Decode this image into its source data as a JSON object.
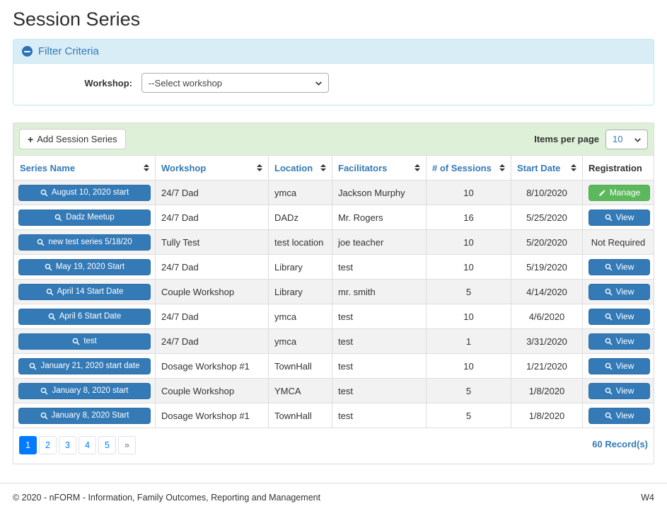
{
  "page": {
    "title": "Session Series"
  },
  "filter": {
    "title": "Filter Criteria",
    "workshop_label": "Workshop:",
    "workshop_selected": "--Select workshop"
  },
  "toolbar": {
    "add_icon_glyph": "+",
    "add_button_label": "Add Session Series",
    "items_per_page_label": "Items per page",
    "items_per_page_value": "10"
  },
  "table": {
    "columns": [
      {
        "label": "Series Name",
        "sortable": true
      },
      {
        "label": "Workshop",
        "sortable": true
      },
      {
        "label": "Location",
        "sortable": true
      },
      {
        "label": "Facilitators",
        "sortable": true
      },
      {
        "label": "# of Sessions",
        "sortable": true
      },
      {
        "label": "Start Date",
        "sortable": true
      },
      {
        "label": "Registration",
        "sortable": false
      }
    ],
    "rows": [
      {
        "series_name": "August 10, 2020 start",
        "workshop": "24/7 Dad",
        "location": "ymca",
        "facilitators": "Jackson Murphy",
        "sessions": "10",
        "start_date": "8/10/2020",
        "registration": {
          "type": "manage",
          "label": "Manage"
        }
      },
      {
        "series_name": "Dadz Meetup",
        "workshop": "24/7 Dad",
        "location": "DADz",
        "facilitators": "Mr. Rogers",
        "sessions": "16",
        "start_date": "5/25/2020",
        "registration": {
          "type": "view",
          "label": "View"
        }
      },
      {
        "series_name": "new test series 5/18/20",
        "workshop": "Tully Test",
        "location": "test location",
        "facilitators": "joe teacher",
        "sessions": "10",
        "start_date": "5/20/2020",
        "registration": {
          "type": "text",
          "label": "Not Required"
        }
      },
      {
        "series_name": "May 19, 2020 Start",
        "workshop": "24/7 Dad",
        "location": "Library",
        "facilitators": "test",
        "sessions": "10",
        "start_date": "5/19/2020",
        "registration": {
          "type": "view",
          "label": "View"
        }
      },
      {
        "series_name": "April 14 Start Date",
        "workshop": "Couple Workshop",
        "location": "Library",
        "facilitators": "mr. smith",
        "sessions": "5",
        "start_date": "4/14/2020",
        "registration": {
          "type": "view",
          "label": "View"
        }
      },
      {
        "series_name": "April 6 Start Date",
        "workshop": "24/7 Dad",
        "location": "ymca",
        "facilitators": "test",
        "sessions": "10",
        "start_date": "4/6/2020",
        "registration": {
          "type": "view",
          "label": "View"
        }
      },
      {
        "series_name": "test",
        "workshop": "24/7 Dad",
        "location": "ymca",
        "facilitators": "test",
        "sessions": "1",
        "start_date": "3/31/2020",
        "registration": {
          "type": "view",
          "label": "View"
        }
      },
      {
        "series_name": "January 21, 2020 start date",
        "workshop": "Dosage Workshop #1",
        "location": "TownHall",
        "facilitators": "test",
        "sessions": "10",
        "start_date": "1/21/2020",
        "registration": {
          "type": "view",
          "label": "View"
        }
      },
      {
        "series_name": "January 8, 2020 start",
        "workshop": "Couple Workshop",
        "location": "YMCA",
        "facilitators": "test",
        "sessions": "5",
        "start_date": "1/8/2020",
        "registration": {
          "type": "view",
          "label": "View"
        }
      },
      {
        "series_name": "January 8, 2020 Start",
        "workshop": "Dosage Workshop #1",
        "location": "TownHall",
        "facilitators": "test",
        "sessions": "5",
        "start_date": "1/8/2020",
        "registration": {
          "type": "view",
          "label": "View"
        }
      }
    ]
  },
  "pagination": {
    "pages": [
      "1",
      "2",
      "3",
      "4",
      "5"
    ],
    "active": "1",
    "next": "»",
    "records": "60 Record(s)"
  },
  "footer": {
    "copyright": "© 2020 - nFORM - Information, Family Outcomes, Reporting and Management",
    "version": "W4"
  },
  "icons": {
    "collapse": "minus-circle-icon",
    "add": "plus-icon",
    "sort": "sort-updown-icon",
    "series_action": "search-icon",
    "view_action": "search-icon",
    "manage_action": "pencil-icon",
    "select": "chevron-down-icon"
  },
  "colors": {
    "primary": "#337ab7",
    "primary_border": "#2e6da4",
    "success": "#5cb85c",
    "success_border": "#4cae4c",
    "info_bg": "#d9edf7",
    "info_border": "#bce8f1",
    "toolbar_bg": "#dff0d8",
    "row_stripe": "#f2f2f2",
    "pagination_active": "#007bff",
    "table_border": "#dddddd"
  }
}
